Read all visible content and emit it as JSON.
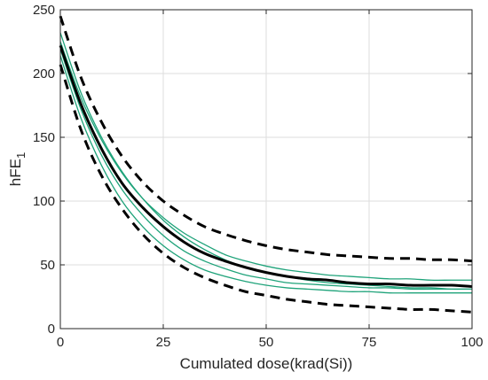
{
  "chart_data": {
    "type": "line",
    "xlabel": "Cumulated dose(krad(Si))",
    "ylabel": "hFE",
    "ylabel_subscript": "1",
    "xlim": [
      0,
      100
    ],
    "ylim": [
      0,
      250
    ],
    "xticks": [
      0,
      25,
      50,
      75,
      100
    ],
    "yticks": [
      0,
      50,
      100,
      150,
      200,
      250
    ],
    "xtick_labels": [
      "0",
      "25",
      "50",
      "75",
      "100"
    ],
    "ytick_labels": [
      "0",
      "50",
      "100",
      "150",
      "200",
      "250"
    ],
    "grid": true,
    "x": [
      0,
      5,
      10,
      15,
      20,
      25,
      30,
      35,
      40,
      45,
      50,
      55,
      60,
      65,
      70,
      75,
      80,
      85,
      90,
      95,
      100
    ],
    "series": [
      {
        "role": "mean",
        "color": "#000000",
        "style": "solid-bold",
        "values": [
          222,
          176,
          141,
          114,
          95,
          80,
          68,
          59,
          53,
          48,
          44,
          41,
          39,
          38,
          36,
          35,
          35,
          34,
          34,
          34,
          33
        ]
      },
      {
        "role": "upper-bound",
        "color": "#000000",
        "style": "dashed",
        "values": [
          245,
          197,
          162,
          135,
          115,
          100,
          89,
          80,
          74,
          69,
          65,
          62,
          60,
          58,
          57,
          56,
          55,
          55,
          54,
          54,
          53
        ]
      },
      {
        "role": "lower-bound",
        "color": "#000000",
        "style": "dashed",
        "values": [
          207,
          156,
          120,
          94,
          74,
          59,
          48,
          40,
          34,
          29,
          26,
          23,
          21,
          19,
          18,
          17,
          16,
          15,
          15,
          14,
          13
        ]
      },
      {
        "role": "sample",
        "color": "#1fa37a",
        "style": "solid-thin",
        "values": [
          225,
          181,
          148,
          122,
          102,
          87,
          75,
          66,
          58,
          53,
          49,
          46,
          44,
          42,
          41,
          40,
          39,
          39,
          38,
          38,
          38
        ]
      },
      {
        "role": "sample",
        "color": "#1fa37a",
        "style": "solid-thin",
        "values": [
          232,
          185,
          150,
          123,
          102,
          85,
          72,
          62,
          54,
          48,
          44,
          41,
          38,
          36,
          35,
          34,
          33,
          32,
          32,
          31,
          31
        ]
      },
      {
        "role": "sample",
        "color": "#1fa37a",
        "style": "solid-thin",
        "values": [
          219,
          172,
          136,
          109,
          89,
          73,
          61,
          53,
          47,
          42,
          39,
          36,
          35,
          34,
          33,
          32,
          32,
          31,
          31,
          31,
          31
        ]
      },
      {
        "role": "sample",
        "color": "#1fa37a",
        "style": "solid-thin",
        "values": [
          214,
          165,
          128,
          100,
          80,
          65,
          54,
          46,
          41,
          37,
          34,
          32,
          31,
          30,
          29,
          29,
          28,
          28,
          28,
          28,
          28
        ]
      }
    ]
  }
}
